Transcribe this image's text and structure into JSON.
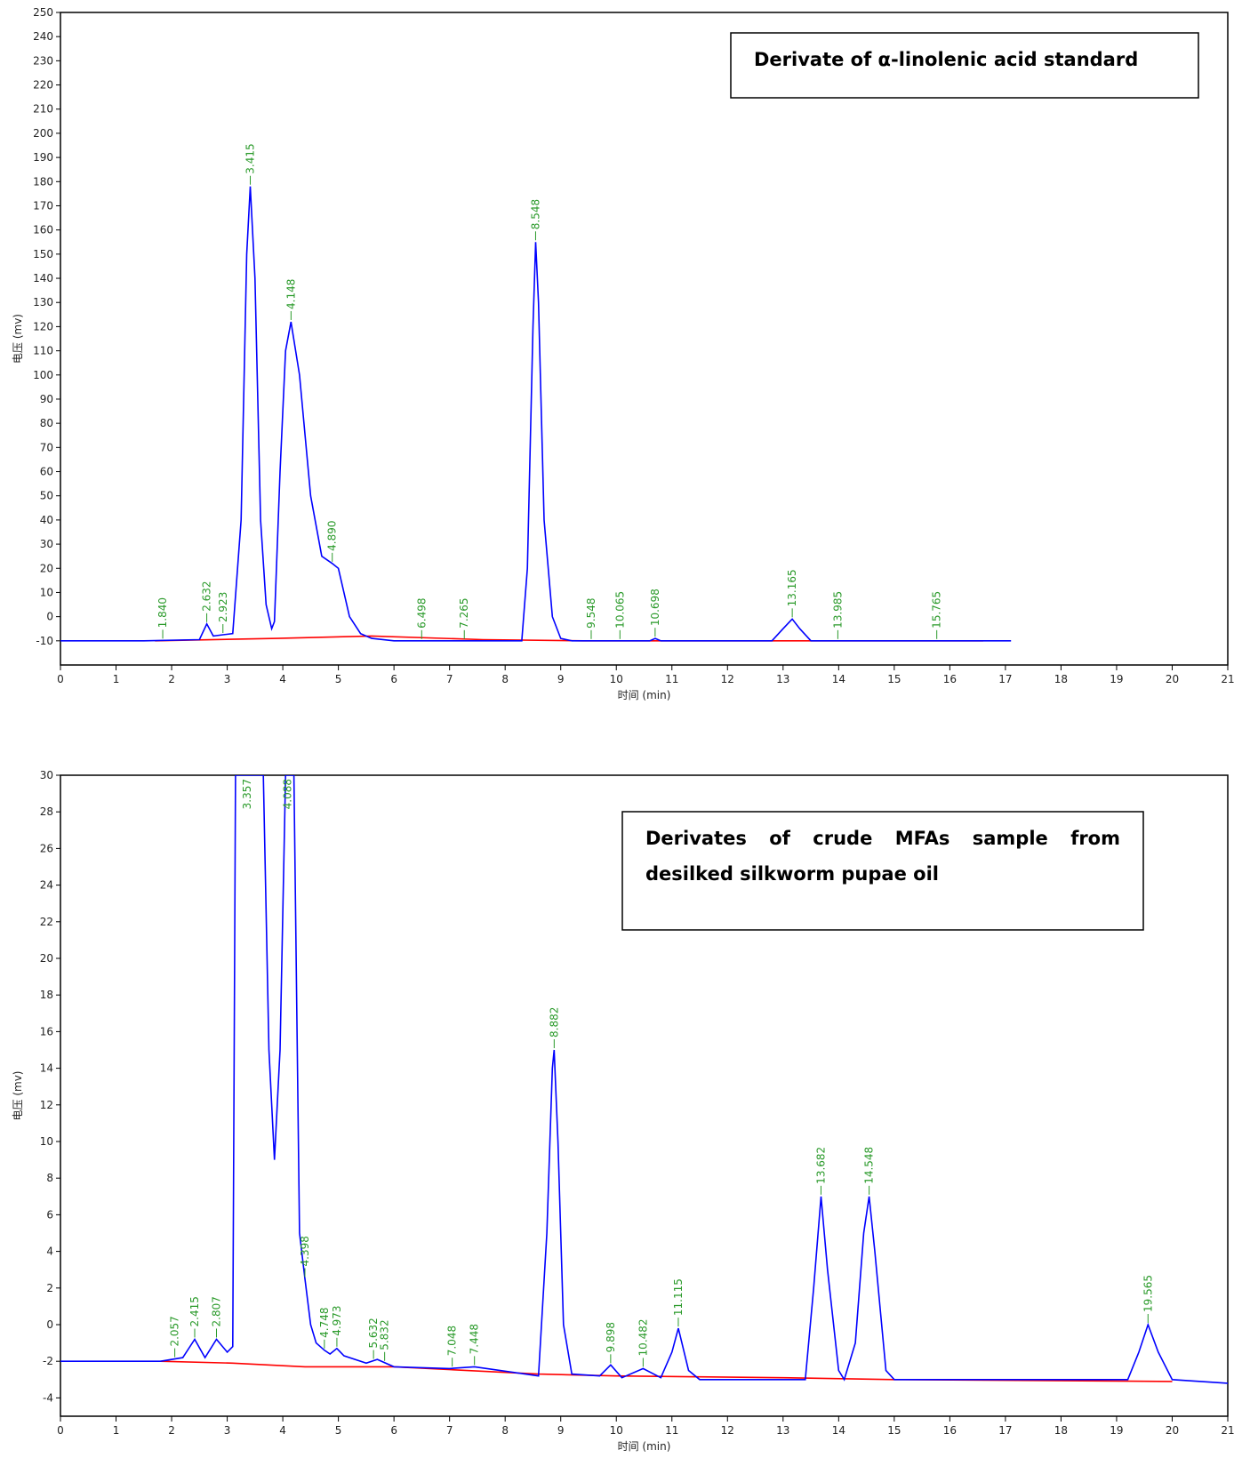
{
  "chart_data": [
    {
      "type": "line",
      "title": "Derivate of α-linolenic acid standard",
      "xlabel": "时间 (min)",
      "ylabel": "电压 (mv)",
      "xlim": [
        0,
        21
      ],
      "xticks": [
        0,
        1,
        2,
        3,
        4,
        5,
        6,
        7,
        8,
        9,
        10,
        11,
        12,
        13,
        14,
        15,
        16,
        17,
        18,
        19,
        20,
        21
      ],
      "ylim": [
        -20,
        250
      ],
      "yticks": [
        -10,
        0,
        10,
        20,
        30,
        40,
        50,
        60,
        70,
        80,
        90,
        100,
        110,
        120,
        130,
        140,
        150,
        160,
        170,
        180,
        190,
        200,
        210,
        220,
        230,
        240,
        250
      ],
      "series": [
        {
          "color": "#0000ff",
          "x": [
            0,
            1.5,
            2.5,
            2.632,
            2.75,
            2.923,
            3.1,
            3.25,
            3.35,
            3.415,
            3.5,
            3.6,
            3.7,
            3.8,
            3.85,
            3.95,
            4.05,
            4.148,
            4.3,
            4.5,
            4.7,
            4.89,
            5.0,
            5.2,
            5.4,
            5.6,
            6,
            8.3,
            8.4,
            8.5,
            8.548,
            8.6,
            8.7,
            8.85,
            9.0,
            9.2,
            10.6,
            10.7,
            10.8,
            12.8,
            13.0,
            13.165,
            13.3,
            13.5,
            17.1
          ],
          "values": [
            -10,
            -10,
            -9.5,
            -3,
            -8,
            -7.5,
            -7,
            40,
            150,
            178,
            140,
            40,
            5,
            -5,
            -2,
            60,
            110,
            122,
            100,
            50,
            25,
            22,
            20,
            0,
            -7,
            -9,
            -10,
            -10,
            20,
            120,
            155,
            130,
            40,
            0,
            -9,
            -10,
            -10,
            -9,
            -10,
            -10,
            -5,
            -1,
            -5,
            -10,
            -10
          ]
        },
        {
          "color": "#ff0000",
          "x": [
            1.7,
            3.9,
            5.6,
            7.6,
            9.4,
            10.2,
            16.6
          ],
          "values": [
            -10,
            -9,
            -8,
            -9.5,
            -10,
            -10,
            -10
          ]
        }
      ],
      "peaks": [
        {
          "value": 1.84,
          "label": "1.840"
        },
        {
          "value": 2.632,
          "label": "2.632"
        },
        {
          "value": 2.923,
          "label": "2.923"
        },
        {
          "value": 3.415,
          "label": "3.415"
        },
        {
          "value": 4.148,
          "label": "4.148"
        },
        {
          "value": 4.89,
          "label": "4.890"
        },
        {
          "value": 6.498,
          "label": "6.498"
        },
        {
          "value": 7.265,
          "label": "7.265"
        },
        {
          "value": 8.548,
          "label": "8.548"
        },
        {
          "value": 9.548,
          "label": "9.548"
        },
        {
          "value": 10.065,
          "label": "10.065"
        },
        {
          "value": 10.698,
          "label": "10.698"
        },
        {
          "value": 13.165,
          "label": "13.165"
        },
        {
          "value": 13.985,
          "label": "13.985"
        },
        {
          "value": 15.765,
          "label": "15.765"
        }
      ],
      "peak_color": "#2a9a2a"
    },
    {
      "type": "line",
      "title": "Derivates of crude MFAs sample from desilked silkworm pupae oil",
      "xlabel": "时间 (min)",
      "ylabel": "电压 (mv)",
      "xlim": [
        0,
        21
      ],
      "xticks": [
        0,
        1,
        2,
        3,
        4,
        5,
        6,
        7,
        8,
        9,
        10,
        11,
        12,
        13,
        14,
        15,
        16,
        17,
        18,
        19,
        20,
        21
      ],
      "ylim": [
        -5,
        30
      ],
      "yticks": [
        -4,
        -2,
        0,
        2,
        4,
        6,
        8,
        10,
        12,
        14,
        16,
        18,
        20,
        22,
        24,
        26,
        28,
        30
      ],
      "series": [
        {
          "color": "#0000ff",
          "x": [
            0,
            1.8,
            2.2,
            2.415,
            2.6,
            2.807,
            3.0,
            3.1,
            3.15,
            3.65,
            3.75,
            3.85,
            3.95,
            4.05,
            4.2,
            4.3,
            4.398,
            4.5,
            4.6,
            4.748,
            4.85,
            4.973,
            5.1,
            5.5,
            5.7,
            6,
            7,
            7.448,
            8.6,
            8.75,
            8.85,
            8.882,
            8.95,
            9.05,
            9.2,
            9.7,
            9.898,
            10.1,
            10.482,
            10.8,
            11.0,
            11.115,
            11.3,
            11.5,
            13.4,
            13.55,
            13.682,
            13.8,
            14.0,
            14.1,
            14.3,
            14.45,
            14.548,
            14.65,
            14.85,
            15.0,
            19.2,
            19.4,
            19.565,
            19.75,
            20,
            21
          ],
          "values": [
            -2,
            -2,
            -1.8,
            -0.8,
            -1.8,
            -0.8,
            -1.5,
            -1.2,
            30,
            30,
            15,
            9,
            15,
            30,
            30,
            5,
            2.5,
            0,
            -1,
            -1.4,
            -1.6,
            -1.3,
            -1.7,
            -2.1,
            -1.9,
            -2.3,
            -2.4,
            -2.3,
            -2.8,
            5,
            14,
            15,
            10,
            0,
            -2.7,
            -2.8,
            -2.2,
            -2.9,
            -2.4,
            -2.9,
            -1.5,
            -0.2,
            -2.5,
            -3,
            -3,
            2,
            7,
            3,
            -2.5,
            -3,
            -1,
            5,
            7,
            4,
            -2.5,
            -3,
            -3,
            -1.5,
            0,
            -1.5,
            -3,
            -3.2
          ]
        },
        {
          "color": "#ff0000",
          "x": [
            1.8,
            3.1,
            4.4,
            6,
            8.6,
            10,
            13,
            15,
            20
          ],
          "values": [
            -2,
            -2.1,
            -2.3,
            -2.3,
            -2.7,
            -2.8,
            -2.9,
            -3,
            -3.1
          ]
        }
      ],
      "peaks": [
        {
          "value": 2.057,
          "label": "2.057"
        },
        {
          "value": 2.415,
          "label": "2.415"
        },
        {
          "value": 2.807,
          "label": "2.807"
        },
        {
          "value": 3.357,
          "label": "3.357"
        },
        {
          "value": 4.088,
          "label": "4.088"
        },
        {
          "value": 4.398,
          "label": "4.398"
        },
        {
          "value": 4.748,
          "label": "4.748"
        },
        {
          "value": 4.973,
          "label": "4.973"
        },
        {
          "value": 5.632,
          "label": "5.632"
        },
        {
          "value": 5.832,
          "label": "5.832"
        },
        {
          "value": 7.048,
          "label": "7.048"
        },
        {
          "value": 7.448,
          "label": "7.448"
        },
        {
          "value": 8.882,
          "label": "8.882"
        },
        {
          "value": 9.898,
          "label": "9.898"
        },
        {
          "value": 10.482,
          "label": "10.482"
        },
        {
          "value": 11.115,
          "label": "11.115"
        },
        {
          "value": 13.682,
          "label": "13.682"
        },
        {
          "value": 14.548,
          "label": "14.548"
        },
        {
          "value": 19.565,
          "label": "19.565"
        }
      ],
      "peak_color": "#2a9a2a"
    }
  ]
}
